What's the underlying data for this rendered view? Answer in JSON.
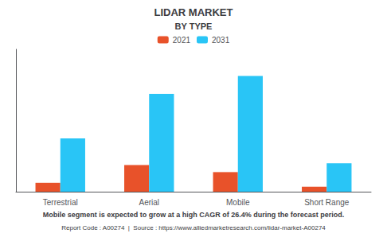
{
  "chart_data": {
    "type": "bar",
    "title": "LIDAR MARKET",
    "subtitle": "BY TYPE",
    "categories": [
      "Terrestrial",
      "Aerial",
      "Mobile",
      "Short Range"
    ],
    "series": [
      {
        "name": "2021",
        "color": "#E8522A",
        "values": [
          0.5,
          1.5,
          1.1,
          0.28
        ]
      },
      {
        "name": "2031",
        "color": "#29C5F6",
        "values": [
          3.0,
          5.5,
          6.5,
          1.6
        ]
      }
    ],
    "ylim": [
      0,
      8
    ],
    "grid": false,
    "tick_labels": "x",
    "legend": "top",
    "annotations": [
      "Mobile segment is expected to grow at a high CAGR of 26.4% during the forecast period.",
      "Report Code : A00274  |  Source : https://www.alliedmarketresearch.com/lidar-market-A00274"
    ]
  }
}
